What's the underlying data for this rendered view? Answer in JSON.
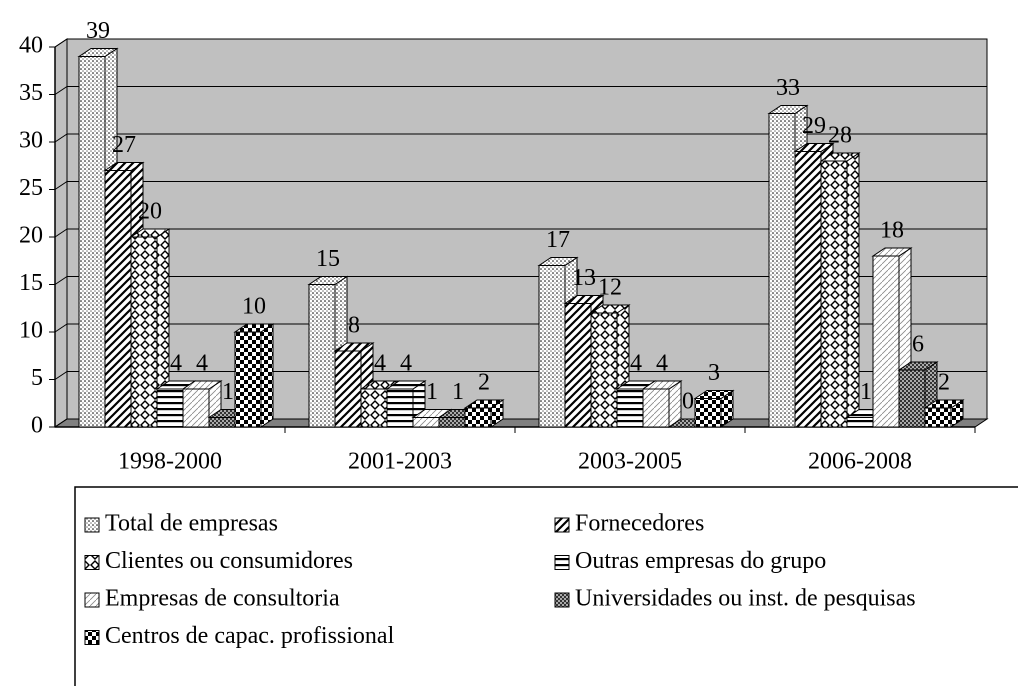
{
  "chart_data": {
    "type": "bar3d",
    "categories": [
      "1998-2000",
      "2001-2003",
      "2003-2005",
      "2006-2008"
    ],
    "series": [
      {
        "name": "Total de empresas",
        "color": "#ffffff",
        "pattern": "dots",
        "values": [
          39,
          15,
          17,
          33
        ]
      },
      {
        "name": "Fornecedores",
        "color": "#ffffff",
        "pattern": "diag",
        "values": [
          27,
          8,
          13,
          29
        ]
      },
      {
        "name": "Clientes ou consumidores",
        "color": "#ffffff",
        "pattern": "diamond",
        "values": [
          20,
          4,
          12,
          28
        ]
      },
      {
        "name": "Outras empresas do grupo",
        "color": "#ffffff",
        "pattern": "hstripe",
        "values": [
          4,
          4,
          4,
          1
        ]
      },
      {
        "name": "Empresas de consultoria",
        "color": "#ffffff",
        "pattern": "lightdiag",
        "values": [
          4,
          1,
          4,
          18
        ]
      },
      {
        "name": "Universidades ou inst. de pesquisas",
        "color": "#ffffff",
        "pattern": "finecheck",
        "values": [
          1,
          1,
          0,
          6
        ]
      },
      {
        "name": "Centros de capac. profissional",
        "color": "#ffffff",
        "pattern": "checker",
        "values": [
          10,
          2,
          3,
          2
        ]
      }
    ],
    "ylim": [
      0,
      40
    ],
    "yticks": [
      0,
      5,
      10,
      15,
      20,
      25,
      30,
      35,
      40
    ],
    "grid": true,
    "wall_color": "#c0c0c0",
    "floor_color": "#808080",
    "legend": "bottom"
  }
}
